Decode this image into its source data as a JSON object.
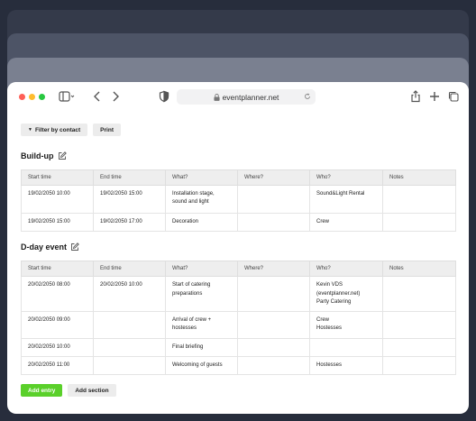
{
  "browser": {
    "url": "eventplanner.net"
  },
  "toolbar": {
    "filter_label": "Filter by contact",
    "print_label": "Print"
  },
  "columns": [
    "Start time",
    "End time",
    "What?",
    "Where?",
    "Who?",
    "Notes"
  ],
  "sections": [
    {
      "title": "Build-up",
      "rows": [
        {
          "start": "19/02/2050 10:00",
          "end": "19/02/2050 15:00",
          "what": [
            "Installation stage,",
            "sound and light"
          ],
          "where": "",
          "who": [
            "Sound&Light Rental"
          ],
          "notes": ""
        },
        {
          "start": "19/02/2050 15:00",
          "end": "19/02/2050 17:00",
          "what": [
            "Decoration"
          ],
          "where": "",
          "who": [
            "Crew"
          ],
          "notes": ""
        }
      ]
    },
    {
      "title": "D-day event",
      "rows": [
        {
          "start": "20/02/2050 08:00",
          "end": "20/02/2050 10:00",
          "what": [
            "Start of catering",
            "preparations"
          ],
          "where": "",
          "who": [
            "Kevin VDS",
            "(eventplanner.net)",
            "Party Catering"
          ],
          "notes": ""
        },
        {
          "start": "20/02/2050 09:00",
          "end": "",
          "what": [
            "Arrival of crew +",
            "hostesses"
          ],
          "where": "",
          "who": [
            "Crew",
            "Hostesses"
          ],
          "notes": ""
        },
        {
          "start": "20/02/2050 10:00",
          "end": "",
          "what": [
            "Final briefing"
          ],
          "where": "",
          "who": [],
          "notes": ""
        },
        {
          "start": "20/02/2050 11:00",
          "end": "",
          "what": [
            "Welcoming of guests"
          ],
          "where": "",
          "who": [
            "Hostesses"
          ],
          "notes": ""
        }
      ]
    }
  ],
  "actions": {
    "add_entry_label": "Add entry",
    "add_section_label": "Add section"
  },
  "colors": {
    "accent_green": "#5ad02a",
    "background": "#272d3c"
  }
}
